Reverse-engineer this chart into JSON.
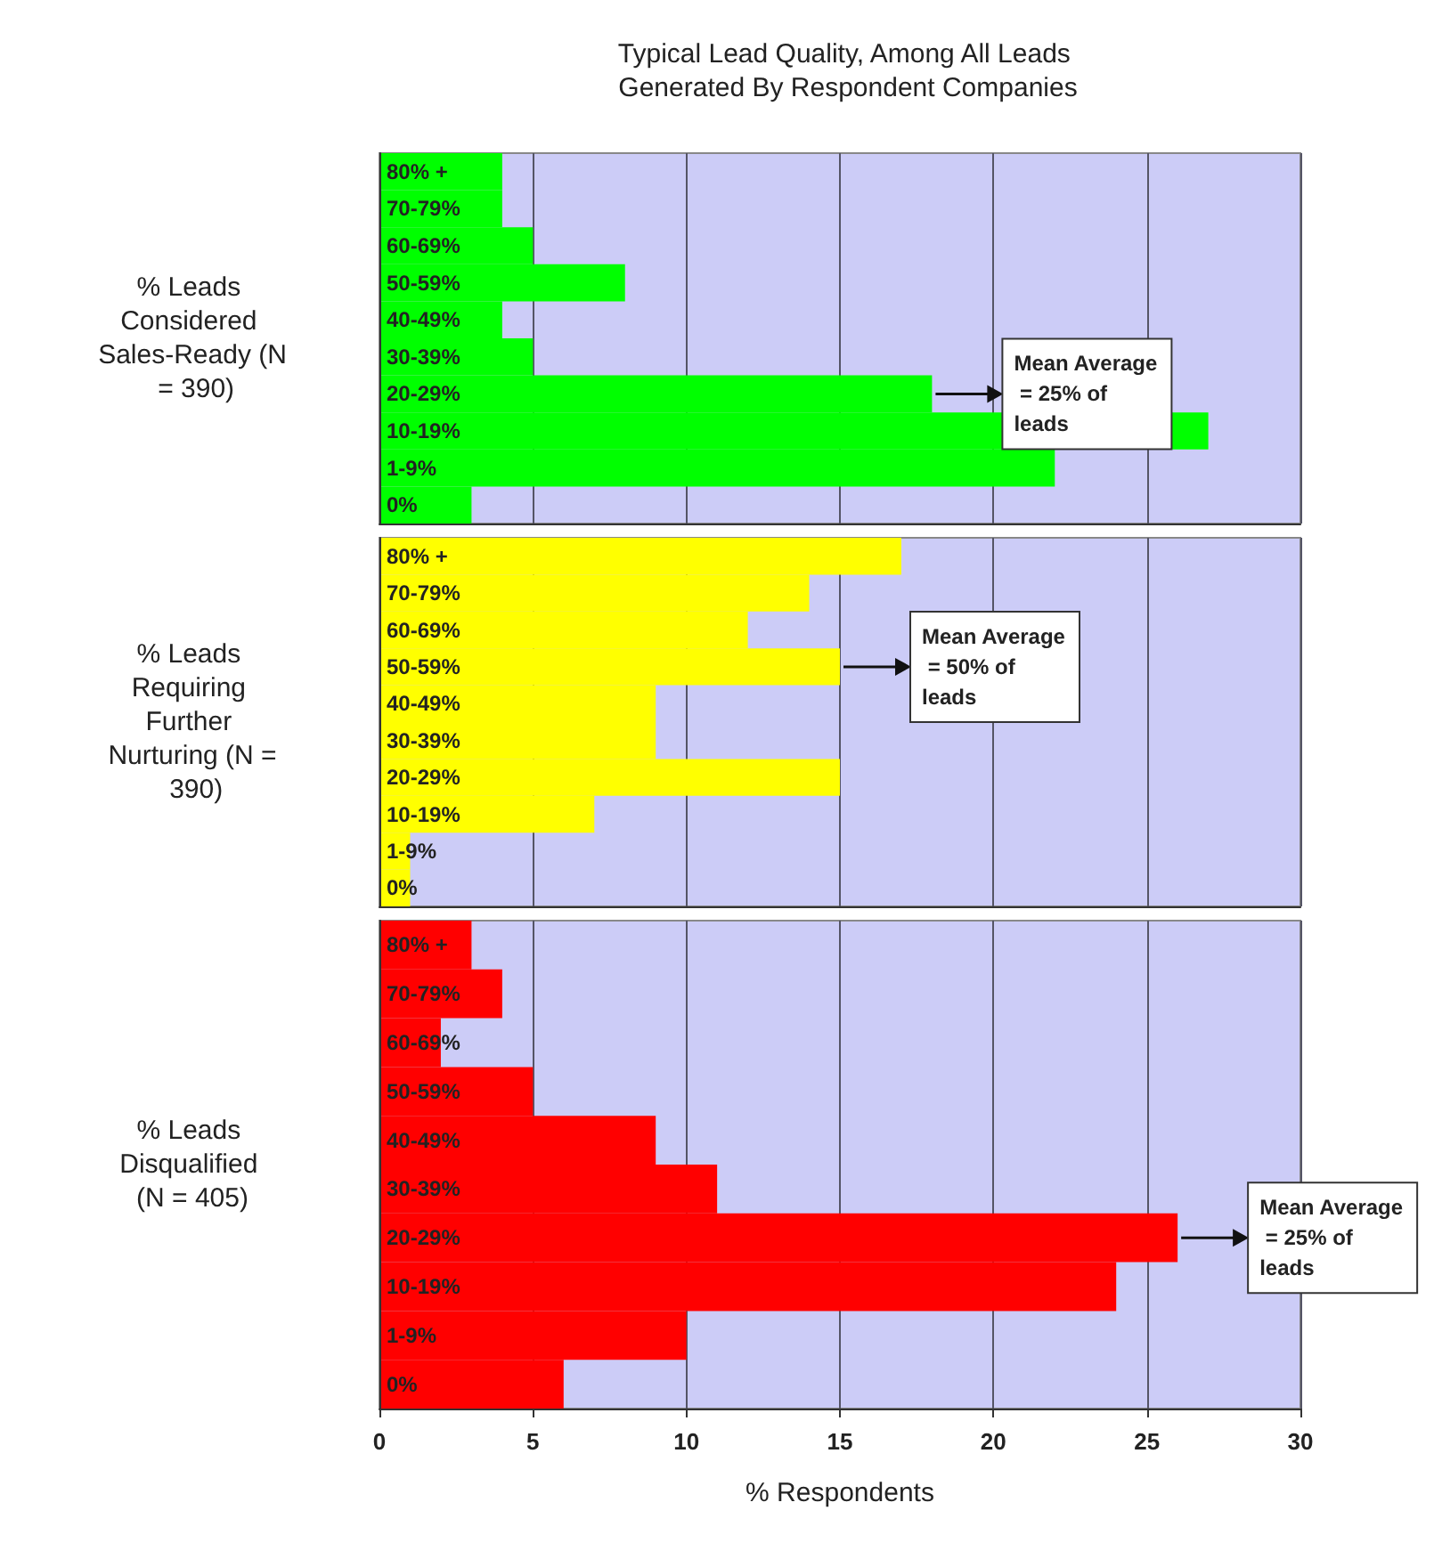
{
  "chart_data": [
    {
      "type": "bar",
      "orientation": "horizontal",
      "title": "Typical Lead Quality, Among All Leads Generated By Respondent Companies",
      "ylabel": "% Leads Considered Sales-Ready (N = 390)",
      "categories": [
        "80% +",
        "70-79%",
        "60-69%",
        "50-59%",
        "40-49%",
        "30-39%",
        "20-29%",
        "10-19%",
        "1-9%",
        "0%"
      ],
      "values": [
        4,
        4,
        5,
        8,
        4,
        5,
        18,
        27,
        22,
        3
      ],
      "color": "#00ff00",
      "xlim": [
        0,
        30
      ],
      "xticks": [
        0,
        5,
        10,
        15,
        20,
        25,
        30
      ],
      "grid": "x",
      "tick_labels": "y",
      "annotations": [
        {
          "text": "Mean Average = 25% of leads",
          "x": 18,
          "y": "20-29%"
        }
      ]
    },
    {
      "type": "bar",
      "orientation": "horizontal",
      "ylabel": "% Leads Requiring Further Nurturing (N = 390)",
      "categories": [
        "80% +",
        "70-79%",
        "60-69%",
        "50-59%",
        "40-49%",
        "30-39%",
        "20-29%",
        "10-19%",
        "1-9%",
        "0%"
      ],
      "values": [
        17,
        14,
        12,
        15,
        9,
        9,
        15,
        7,
        1,
        1
      ],
      "color": "#ffff00",
      "xlim": [
        0,
        30
      ],
      "xticks": [
        0,
        5,
        10,
        15,
        20,
        25,
        30
      ],
      "grid": "x",
      "tick_labels": "y",
      "annotations": [
        {
          "text": "Mean Average = 50% of leads",
          "x": 15,
          "y": "50-59%"
        }
      ]
    },
    {
      "type": "bar",
      "orientation": "horizontal",
      "ylabel": "% Leads Disqualified (N = 405)",
      "xlabel": "% Respondents",
      "categories": [
        "80% +",
        "70-79%",
        "60-69%",
        "50-59%",
        "40-49%",
        "30-39%",
        "20-29%",
        "10-19%",
        "1-9%",
        "0%"
      ],
      "values": [
        3,
        4,
        2,
        5,
        9,
        11,
        26,
        24,
        10,
        6
      ],
      "color": "#ff0000",
      "xlim": [
        0,
        30
      ],
      "xticks": [
        0,
        5,
        10,
        15,
        20,
        25,
        30
      ],
      "grid": "x",
      "annotations": [
        {
          "text": "Mean Average = 25% of leads",
          "x": 26,
          "y": "20-29%"
        }
      ]
    }
  ]
}
